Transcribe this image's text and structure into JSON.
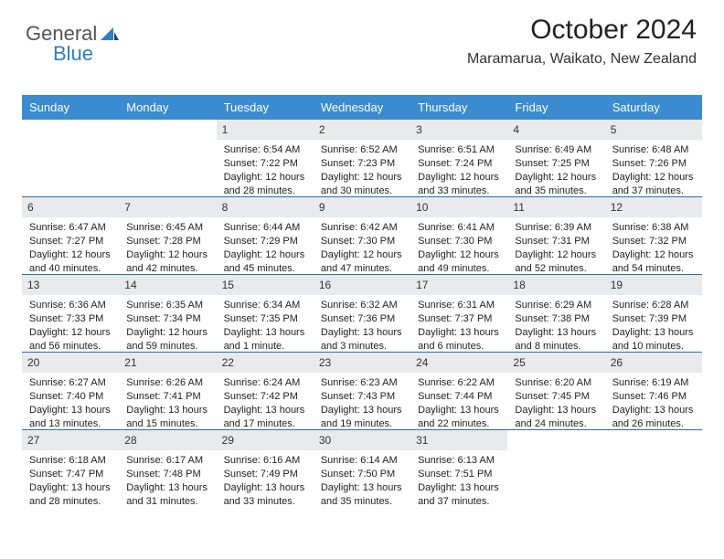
{
  "brand": {
    "part1": "General",
    "part2": "Blue"
  },
  "title": {
    "month": "October 2024",
    "location": "Maramarua, Waikato, New Zealand"
  },
  "style": {
    "header_bg": "#3a8bd0",
    "header_text": "#ffffff",
    "daynum_bg": "#e9eaeb",
    "row_divider": "#2f6ea7",
    "brand_accent": "#2f7fc2",
    "page_bg": "#ffffff"
  },
  "weekdays": [
    "Sunday",
    "Monday",
    "Tuesday",
    "Wednesday",
    "Thursday",
    "Friday",
    "Saturday"
  ],
  "weeks": [
    [
      null,
      null,
      {
        "n": "1",
        "l1": "Sunrise: 6:54 AM",
        "l2": "Sunset: 7:22 PM",
        "l3": "Daylight: 12 hours",
        "l4": "and 28 minutes."
      },
      {
        "n": "2",
        "l1": "Sunrise: 6:52 AM",
        "l2": "Sunset: 7:23 PM",
        "l3": "Daylight: 12 hours",
        "l4": "and 30 minutes."
      },
      {
        "n": "3",
        "l1": "Sunrise: 6:51 AM",
        "l2": "Sunset: 7:24 PM",
        "l3": "Daylight: 12 hours",
        "l4": "and 33 minutes."
      },
      {
        "n": "4",
        "l1": "Sunrise: 6:49 AM",
        "l2": "Sunset: 7:25 PM",
        "l3": "Daylight: 12 hours",
        "l4": "and 35 minutes."
      },
      {
        "n": "5",
        "l1": "Sunrise: 6:48 AM",
        "l2": "Sunset: 7:26 PM",
        "l3": "Daylight: 12 hours",
        "l4": "and 37 minutes."
      }
    ],
    [
      {
        "n": "6",
        "l1": "Sunrise: 6:47 AM",
        "l2": "Sunset: 7:27 PM",
        "l3": "Daylight: 12 hours",
        "l4": "and 40 minutes."
      },
      {
        "n": "7",
        "l1": "Sunrise: 6:45 AM",
        "l2": "Sunset: 7:28 PM",
        "l3": "Daylight: 12 hours",
        "l4": "and 42 minutes."
      },
      {
        "n": "8",
        "l1": "Sunrise: 6:44 AM",
        "l2": "Sunset: 7:29 PM",
        "l3": "Daylight: 12 hours",
        "l4": "and 45 minutes."
      },
      {
        "n": "9",
        "l1": "Sunrise: 6:42 AM",
        "l2": "Sunset: 7:30 PM",
        "l3": "Daylight: 12 hours",
        "l4": "and 47 minutes."
      },
      {
        "n": "10",
        "l1": "Sunrise: 6:41 AM",
        "l2": "Sunset: 7:30 PM",
        "l3": "Daylight: 12 hours",
        "l4": "and 49 minutes."
      },
      {
        "n": "11",
        "l1": "Sunrise: 6:39 AM",
        "l2": "Sunset: 7:31 PM",
        "l3": "Daylight: 12 hours",
        "l4": "and 52 minutes."
      },
      {
        "n": "12",
        "l1": "Sunrise: 6:38 AM",
        "l2": "Sunset: 7:32 PM",
        "l3": "Daylight: 12 hours",
        "l4": "and 54 minutes."
      }
    ],
    [
      {
        "n": "13",
        "l1": "Sunrise: 6:36 AM",
        "l2": "Sunset: 7:33 PM",
        "l3": "Daylight: 12 hours",
        "l4": "and 56 minutes."
      },
      {
        "n": "14",
        "l1": "Sunrise: 6:35 AM",
        "l2": "Sunset: 7:34 PM",
        "l3": "Daylight: 12 hours",
        "l4": "and 59 minutes."
      },
      {
        "n": "15",
        "l1": "Sunrise: 6:34 AM",
        "l2": "Sunset: 7:35 PM",
        "l3": "Daylight: 13 hours",
        "l4": "and 1 minute."
      },
      {
        "n": "16",
        "l1": "Sunrise: 6:32 AM",
        "l2": "Sunset: 7:36 PM",
        "l3": "Daylight: 13 hours",
        "l4": "and 3 minutes."
      },
      {
        "n": "17",
        "l1": "Sunrise: 6:31 AM",
        "l2": "Sunset: 7:37 PM",
        "l3": "Daylight: 13 hours",
        "l4": "and 6 minutes."
      },
      {
        "n": "18",
        "l1": "Sunrise: 6:29 AM",
        "l2": "Sunset: 7:38 PM",
        "l3": "Daylight: 13 hours",
        "l4": "and 8 minutes."
      },
      {
        "n": "19",
        "l1": "Sunrise: 6:28 AM",
        "l2": "Sunset: 7:39 PM",
        "l3": "Daylight: 13 hours",
        "l4": "and 10 minutes."
      }
    ],
    [
      {
        "n": "20",
        "l1": "Sunrise: 6:27 AM",
        "l2": "Sunset: 7:40 PM",
        "l3": "Daylight: 13 hours",
        "l4": "and 13 minutes."
      },
      {
        "n": "21",
        "l1": "Sunrise: 6:26 AM",
        "l2": "Sunset: 7:41 PM",
        "l3": "Daylight: 13 hours",
        "l4": "and 15 minutes."
      },
      {
        "n": "22",
        "l1": "Sunrise: 6:24 AM",
        "l2": "Sunset: 7:42 PM",
        "l3": "Daylight: 13 hours",
        "l4": "and 17 minutes."
      },
      {
        "n": "23",
        "l1": "Sunrise: 6:23 AM",
        "l2": "Sunset: 7:43 PM",
        "l3": "Daylight: 13 hours",
        "l4": "and 19 minutes."
      },
      {
        "n": "24",
        "l1": "Sunrise: 6:22 AM",
        "l2": "Sunset: 7:44 PM",
        "l3": "Daylight: 13 hours",
        "l4": "and 22 minutes."
      },
      {
        "n": "25",
        "l1": "Sunrise: 6:20 AM",
        "l2": "Sunset: 7:45 PM",
        "l3": "Daylight: 13 hours",
        "l4": "and 24 minutes."
      },
      {
        "n": "26",
        "l1": "Sunrise: 6:19 AM",
        "l2": "Sunset: 7:46 PM",
        "l3": "Daylight: 13 hours",
        "l4": "and 26 minutes."
      }
    ],
    [
      {
        "n": "27",
        "l1": "Sunrise: 6:18 AM",
        "l2": "Sunset: 7:47 PM",
        "l3": "Daylight: 13 hours",
        "l4": "and 28 minutes."
      },
      {
        "n": "28",
        "l1": "Sunrise: 6:17 AM",
        "l2": "Sunset: 7:48 PM",
        "l3": "Daylight: 13 hours",
        "l4": "and 31 minutes."
      },
      {
        "n": "29",
        "l1": "Sunrise: 6:16 AM",
        "l2": "Sunset: 7:49 PM",
        "l3": "Daylight: 13 hours",
        "l4": "and 33 minutes."
      },
      {
        "n": "30",
        "l1": "Sunrise: 6:14 AM",
        "l2": "Sunset: 7:50 PM",
        "l3": "Daylight: 13 hours",
        "l4": "and 35 minutes."
      },
      {
        "n": "31",
        "l1": "Sunrise: 6:13 AM",
        "l2": "Sunset: 7:51 PM",
        "l3": "Daylight: 13 hours",
        "l4": "and 37 minutes."
      },
      null,
      null
    ]
  ]
}
